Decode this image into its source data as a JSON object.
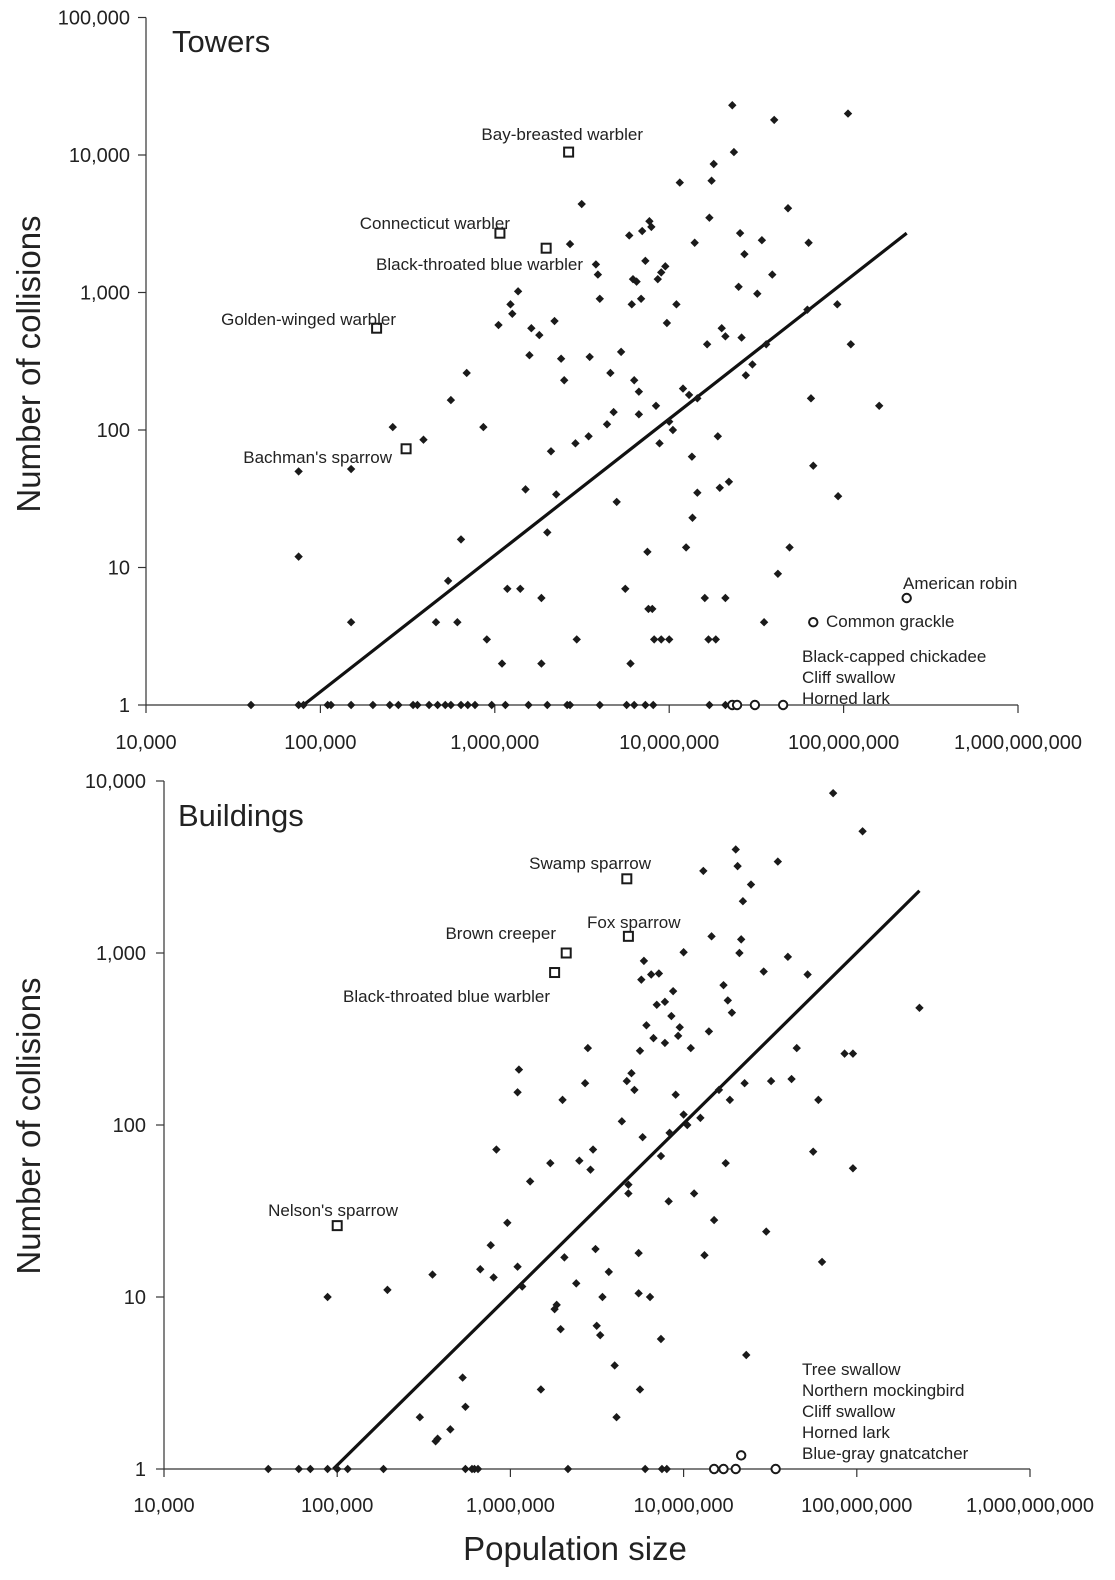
{
  "ylabel": "Number of collisions",
  "xlabel": "Population size",
  "chart_data": [
    {
      "type": "scatter",
      "panel": "towers",
      "title": "Towers",
      "xlabel": "",
      "ylabel": "Number of collisions",
      "x_scale": "log",
      "y_scale": "log",
      "xlim": [
        10000,
        1000000000
      ],
      "ylim": [
        1,
        100000
      ],
      "x_ticks": [
        "10,000",
        "100,000",
        "1,000,000",
        "10,000,000",
        "100,000,000",
        "1,000,000,000"
      ],
      "y_ticks": [
        "1",
        "10",
        "100",
        "1,000",
        "10,000",
        "100,000"
      ],
      "trend": [
        [
          80000,
          1
        ],
        [
          230000000,
          2700
        ]
      ],
      "points": [
        [
          40000,
          1
        ],
        [
          75000,
          1
        ],
        [
          80000,
          1
        ],
        [
          110000,
          1
        ],
        [
          115000,
          1
        ],
        [
          150000,
          1
        ],
        [
          200000,
          1
        ],
        [
          250000,
          1
        ],
        [
          280000,
          1
        ],
        [
          340000,
          1
        ],
        [
          360000,
          1
        ],
        [
          420000,
          1
        ],
        [
          470000,
          1
        ],
        [
          520000,
          1
        ],
        [
          560000,
          1
        ],
        [
          640000,
          1
        ],
        [
          700000,
          1
        ],
        [
          770000,
          1
        ],
        [
          960000,
          1
        ],
        [
          1150000,
          1
        ],
        [
          1560000,
          1
        ],
        [
          2000000,
          1
        ],
        [
          2600000,
          1
        ],
        [
          2700000,
          1
        ],
        [
          4000000,
          1
        ],
        [
          5700000,
          1
        ],
        [
          6300000,
          1
        ],
        [
          7300000,
          1
        ],
        [
          8100000,
          1
        ],
        [
          17000000,
          1
        ],
        [
          21000000,
          1
        ],
        [
          75000,
          50
        ],
        [
          75000,
          12
        ],
        [
          150000,
          52
        ],
        [
          150000,
          4
        ],
        [
          260000,
          105
        ],
        [
          390000,
          85
        ],
        [
          460000,
          4
        ],
        [
          540000,
          8
        ],
        [
          560000,
          165
        ],
        [
          610000,
          4
        ],
        [
          640000,
          16
        ],
        [
          690000,
          260
        ],
        [
          860000,
          105
        ],
        [
          900000,
          3
        ],
        [
          1050000,
          580
        ],
        [
          1100000,
          2
        ],
        [
          1180000,
          7
        ],
        [
          1230000,
          820
        ],
        [
          1260000,
          700
        ],
        [
          1360000,
          1020
        ],
        [
          1400000,
          7
        ],
        [
          1500000,
          37
        ],
        [
          1580000,
          350
        ],
        [
          1620000,
          550
        ],
        [
          1800000,
          490
        ],
        [
          1850000,
          6
        ],
        [
          1850000,
          2
        ],
        [
          2000000,
          18
        ],
        [
          2100000,
          70
        ],
        [
          2200000,
          620
        ],
        [
          2250000,
          34
        ],
        [
          2400000,
          330
        ],
        [
          2500000,
          230
        ],
        [
          2700000,
          2250
        ],
        [
          2900000,
          80
        ],
        [
          2950000,
          3
        ],
        [
          3150000,
          4400
        ],
        [
          3450000,
          90
        ],
        [
          3500000,
          340
        ],
        [
          3800000,
          1600
        ],
        [
          3900000,
          1350
        ],
        [
          4000000,
          900
        ],
        [
          4400000,
          110
        ],
        [
          4600000,
          260
        ],
        [
          4800000,
          135
        ],
        [
          5000000,
          30
        ],
        [
          5300000,
          370
        ],
        [
          5600000,
          7
        ],
        [
          5900000,
          2600
        ],
        [
          6000000,
          2
        ],
        [
          6100000,
          820
        ],
        [
          6200000,
          1250
        ],
        [
          6300000,
          230
        ],
        [
          6500000,
          1200
        ],
        [
          6700000,
          190
        ],
        [
          6700000,
          130
        ],
        [
          6900000,
          900
        ],
        [
          7000000,
          2800
        ],
        [
          7300000,
          1700
        ],
        [
          7500000,
          13
        ],
        [
          7600000,
          5
        ],
        [
          7700000,
          3300
        ],
        [
          7900000,
          3000
        ],
        [
          8000000,
          5
        ],
        [
          8200000,
          3
        ],
        [
          8400000,
          150
        ],
        [
          8600000,
          1250
        ],
        [
          8800000,
          80
        ],
        [
          9000000,
          1400
        ],
        [
          9000000,
          3
        ],
        [
          9500000,
          1550
        ],
        [
          9700000,
          600
        ],
        [
          10000000,
          3
        ],
        [
          10000000,
          115
        ],
        [
          10500000,
          100
        ],
        [
          11000000,
          820
        ],
        [
          11500000,
          6300
        ],
        [
          12000000,
          200
        ],
        [
          12500000,
          14
        ],
        [
          13000000,
          180
        ],
        [
          13500000,
          64
        ],
        [
          13600000,
          23
        ],
        [
          14000000,
          2300
        ],
        [
          14500000,
          35
        ],
        [
          14500000,
          170
        ],
        [
          16000000,
          6
        ],
        [
          16500000,
          420
        ],
        [
          16800000,
          3
        ],
        [
          17000000,
          3500
        ],
        [
          17500000,
          6500
        ],
        [
          18000000,
          8600
        ],
        [
          18500000,
          3
        ],
        [
          19000000,
          90
        ],
        [
          19500000,
          38
        ],
        [
          20000000,
          550
        ],
        [
          21000000,
          480
        ],
        [
          21000000,
          6
        ],
        [
          22000000,
          42
        ],
        [
          23000000,
          23000
        ],
        [
          23500000,
          10500
        ],
        [
          25000000,
          1100
        ],
        [
          25500000,
          2700
        ],
        [
          26000000,
          470
        ],
        [
          27000000,
          1900
        ],
        [
          27500000,
          250
        ],
        [
          30000000,
          300
        ],
        [
          32000000,
          980
        ],
        [
          34000000,
          2400
        ],
        [
          35000000,
          4
        ],
        [
          36000000,
          420
        ],
        [
          39000000,
          1350
        ],
        [
          40000000,
          18000
        ],
        [
          42000000,
          9
        ],
        [
          48000000,
          4100
        ],
        [
          49000000,
          14
        ],
        [
          62000000,
          750
        ],
        [
          63000000,
          2300
        ],
        [
          65000000,
          170
        ],
        [
          67000000,
          55
        ],
        [
          92000000,
          820
        ],
        [
          93000000,
          33
        ],
        [
          106000000,
          20000
        ],
        [
          110000000,
          420
        ],
        [
          160000000,
          150
        ]
      ],
      "highlighted": [
        {
          "label": "Golden-winged warbler",
          "x": 210000,
          "y": 550,
          "marker": "square"
        },
        {
          "label": "Bachman's sparrow",
          "x": 310000,
          "y": 73,
          "marker": "square"
        },
        {
          "label": "Connecticut warbler",
          "x": 1070000,
          "y": 2700,
          "marker": "square"
        },
        {
          "label": "Black-throated blue warbler",
          "x": 1970000,
          "y": 2100,
          "marker": "square"
        },
        {
          "label": "Bay-breasted warbler",
          "x": 2650000,
          "y": 10500,
          "marker": "square"
        }
      ],
      "circles": [
        {
          "label": "American robin",
          "x": 230000000,
          "y": 6
        },
        {
          "label": "Common grackle",
          "x": 67000000,
          "y": 4
        }
      ],
      "circles_at_one": [
        {
          "x": 23000000,
          "y": 1
        },
        {
          "x": 24500000,
          "y": 1
        },
        {
          "x": 31000000,
          "y": 1
        },
        {
          "x": 45000000,
          "y": 1
        }
      ],
      "bottom_labels": [
        "Black-capped chickadee",
        "Cliff swallow",
        "Horned lark"
      ]
    },
    {
      "type": "scatter",
      "panel": "buildings",
      "title": "Buildings",
      "xlabel": "Population size",
      "ylabel": "Number of collisions",
      "x_scale": "log",
      "y_scale": "log",
      "xlim": [
        10000,
        1000000000
      ],
      "ylim": [
        1,
        10000
      ],
      "x_ticks": [
        "10,000",
        "100,000",
        "1,000,000",
        "10,000,000",
        "100,000,000",
        "1,000,000,000"
      ],
      "y_ticks": [
        "1",
        "10",
        "100",
        "1,000",
        "10,000"
      ],
      "trend": [
        [
          95000,
          1
        ],
        [
          230000000,
          2300
        ]
      ],
      "points": [
        [
          40000,
          1
        ],
        [
          60000,
          1
        ],
        [
          70000,
          1
        ],
        [
          88000,
          1
        ],
        [
          100000,
          1
        ],
        [
          115000,
          1
        ],
        [
          185000,
          1
        ],
        [
          550000,
          1
        ],
        [
          600000,
          1
        ],
        [
          620000,
          1
        ],
        [
          650000,
          1
        ],
        [
          2150000,
          1
        ],
        [
          6000000,
          1
        ],
        [
          7500000,
          1
        ],
        [
          8000000,
          1
        ],
        [
          88000,
          10
        ],
        [
          195000,
          11
        ],
        [
          355000,
          13.5
        ],
        [
          300000,
          2
        ],
        [
          370000,
          1.45
        ],
        [
          380000,
          1.5
        ],
        [
          450000,
          1.7
        ],
        [
          530000,
          3.4
        ],
        [
          550000,
          2.3
        ],
        [
          670000,
          14.5
        ],
        [
          770000,
          20
        ],
        [
          800000,
          13
        ],
        [
          830000,
          72
        ],
        [
          960000,
          27
        ],
        [
          1100000,
          15
        ],
        [
          1120000,
          210
        ],
        [
          1170000,
          11.5
        ],
        [
          1100000,
          155
        ],
        [
          1300000,
          47
        ],
        [
          1500000,
          2.9
        ],
        [
          1700000,
          60
        ],
        [
          1800000,
          8.5
        ],
        [
          1850000,
          9
        ],
        [
          1950000,
          6.5
        ],
        [
          2000000,
          140
        ],
        [
          2050000,
          17
        ],
        [
          2400000,
          12
        ],
        [
          2500000,
          62
        ],
        [
          2700000,
          175
        ],
        [
          2800000,
          280
        ],
        [
          2900000,
          55
        ],
        [
          3000000,
          72
        ],
        [
          3100000,
          19
        ],
        [
          3150000,
          6.8
        ],
        [
          3300000,
          6
        ],
        [
          3400000,
          10
        ],
        [
          3700000,
          14
        ],
        [
          4000000,
          4
        ],
        [
          4100000,
          2
        ],
        [
          4400000,
          105
        ],
        [
          4700000,
          180
        ],
        [
          4800000,
          45
        ],
        [
          4800000,
          40
        ],
        [
          5000000,
          200
        ],
        [
          5200000,
          160
        ],
        [
          5500000,
          18
        ],
        [
          5500000,
          10.5
        ],
        [
          5600000,
          270
        ],
        [
          5600000,
          2.9
        ],
        [
          5700000,
          700
        ],
        [
          5800000,
          85
        ],
        [
          5900000,
          900
        ],
        [
          6100000,
          380
        ],
        [
          6400000,
          10
        ],
        [
          6500000,
          750
        ],
        [
          6700000,
          320
        ],
        [
          7000000,
          500
        ],
        [
          7200000,
          760
        ],
        [
          7400000,
          66
        ],
        [
          7400000,
          5.7
        ],
        [
          7800000,
          520
        ],
        [
          7800000,
          300
        ],
        [
          8200000,
          36
        ],
        [
          8300000,
          90
        ],
        [
          8500000,
          430
        ],
        [
          8700000,
          600
        ],
        [
          9000000,
          150
        ],
        [
          9300000,
          330
        ],
        [
          9500000,
          370
        ],
        [
          10000000,
          115
        ],
        [
          10000000,
          1010
        ],
        [
          10500000,
          100
        ],
        [
          11000000,
          280
        ],
        [
          11500000,
          40
        ],
        [
          12500000,
          110
        ],
        [
          13000000,
          3000
        ],
        [
          13200000,
          17.5
        ],
        [
          14000000,
          350
        ],
        [
          14500000,
          1250
        ],
        [
          15000000,
          28
        ],
        [
          16000000,
          160
        ],
        [
          17000000,
          650
        ],
        [
          17500000,
          60
        ],
        [
          18000000,
          530
        ],
        [
          18500000,
          140
        ],
        [
          19000000,
          450
        ],
        [
          20000000,
          4000
        ],
        [
          20500000,
          3200
        ],
        [
          21000000,
          1000
        ],
        [
          21500000,
          1200
        ],
        [
          22000000,
          2000
        ],
        [
          22500000,
          175
        ],
        [
          23000000,
          4.6
        ],
        [
          24500000,
          2500
        ],
        [
          29000000,
          780
        ],
        [
          30000000,
          24
        ],
        [
          32000000,
          180
        ],
        [
          35000000,
          3400
        ],
        [
          40000000,
          950
        ],
        [
          42000000,
          185
        ],
        [
          45000000,
          280
        ],
        [
          52000000,
          750
        ],
        [
          56000000,
          70
        ],
        [
          60000000,
          140
        ],
        [
          63000000,
          16
        ],
        [
          73000000,
          8500
        ],
        [
          85000000,
          260
        ],
        [
          95000000,
          260
        ],
        [
          95000000,
          56
        ],
        [
          108000000,
          5100
        ],
        [
          230000000,
          480
        ]
      ],
      "highlighted": [
        {
          "label": "Nelson's sparrow",
          "x": 100000,
          "y": 26,
          "marker": "square"
        },
        {
          "label": "Black-throated blue warbler",
          "x": 1800000,
          "y": 770,
          "marker": "square"
        },
        {
          "label": "Brown creeper",
          "x": 2100000,
          "y": 1000,
          "marker": "square"
        },
        {
          "label": "Fox sparrow",
          "x": 4800000,
          "y": 1250,
          "marker": "square"
        },
        {
          "label": "Swamp sparrow",
          "x": 4700000,
          "y": 2700,
          "marker": "square"
        }
      ],
      "circles_at_one": [
        {
          "x": 15000000,
          "y": 1
        },
        {
          "x": 17000000,
          "y": 1
        },
        {
          "x": 20000000,
          "y": 1
        },
        {
          "x": 21500000,
          "y": 1.2
        },
        {
          "x": 34000000,
          "y": 1
        }
      ],
      "bottom_labels": [
        "Tree swallow",
        "Northern mockingbird",
        "Cliff swallow",
        "Horned lark",
        "Blue-gray gnatcatcher"
      ]
    }
  ]
}
